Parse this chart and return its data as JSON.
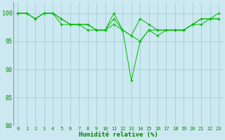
{
  "series": [
    {
      "x": [
        0,
        1,
        2,
        3,
        4,
        5,
        6,
        7,
        8,
        9,
        10,
        11,
        12,
        13,
        14,
        15,
        16,
        17,
        18,
        19,
        20,
        21,
        22,
        23
      ],
      "y": [
        100,
        100,
        99,
        100,
        100,
        99,
        98,
        98,
        98,
        97,
        97,
        100,
        97,
        88,
        95,
        97,
        97,
        97,
        97,
        97,
        98,
        99,
        99,
        100
      ]
    },
    {
      "x": [
        0,
        1,
        2,
        3,
        4,
        5,
        6,
        7,
        8,
        9,
        10,
        11,
        12,
        13,
        14,
        15,
        16,
        17,
        18,
        19,
        20,
        21,
        22,
        23
      ],
      "y": [
        100,
        100,
        99,
        100,
        100,
        99,
        98,
        98,
        98,
        97,
        97,
        99,
        97,
        96,
        99,
        98,
        97,
        97,
        97,
        97,
        98,
        99,
        99,
        99
      ]
    },
    {
      "x": [
        0,
        1,
        2,
        3,
        4,
        5,
        6,
        7,
        8,
        9,
        10,
        11,
        12,
        13,
        14,
        15,
        16,
        17,
        18,
        19,
        20,
        21,
        22,
        23
      ],
      "y": [
        100,
        100,
        99,
        100,
        100,
        98,
        98,
        98,
        97,
        97,
        97,
        98,
        97,
        96,
        95,
        97,
        96,
        97,
        97,
        97,
        98,
        98,
        99,
        99
      ]
    }
  ],
  "line_color": "#00bb00",
  "marker_color": "#00bb00",
  "bg_color": "#cce8f0",
  "grid_color": "#99cccc",
  "xlabel": "Humidité relative (%)",
  "xlabel_color": "#008800",
  "tick_color": "#008800",
  "xlim": [
    -0.5,
    23.5
  ],
  "ylim": [
    80,
    102
  ],
  "yticks": [
    80,
    85,
    90,
    95,
    100
  ],
  "xticks": [
    0,
    1,
    2,
    3,
    4,
    5,
    6,
    7,
    8,
    9,
    10,
    11,
    12,
    13,
    14,
    15,
    16,
    17,
    18,
    19,
    20,
    21,
    22,
    23
  ]
}
